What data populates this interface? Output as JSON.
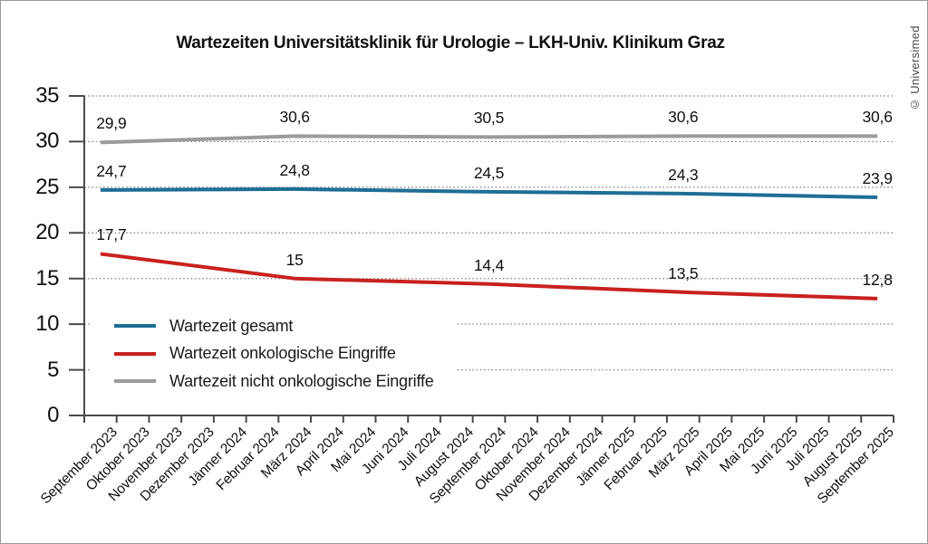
{
  "title": "Wartezeiten Universitätsklinik für Urologie – LKH-Univ. Klinikum Graz",
  "watermark": "© Universimed",
  "colors": {
    "axis": "#4a4a4a",
    "grid": "#808080",
    "series_blue": "#1f6e96",
    "series_red": "#c8211f",
    "series_gray": "#9b9b9b"
  },
  "chart_data": {
    "type": "line",
    "title": "Wartezeiten Universitätsklinik für Urologie – LKH-Univ. Klinikum Graz",
    "xlabel": "",
    "ylabel": "",
    "ylim": [
      0,
      35
    ],
    "ytick_step": 5,
    "ytick_labels": [
      "0",
      "5",
      "10",
      "15",
      "20",
      "25",
      "30",
      "35"
    ],
    "grid": "horizontal-dotted",
    "legend_position": "inside-lower-left",
    "x_categories": [
      "September 2023",
      "Oktober 2023",
      "November 2023",
      "Dezember 2023",
      "Jänner 2024",
      "Februar 2024",
      "März 2024",
      "April 2024",
      "Mai 2024",
      "Juni 2024",
      "Juli 2024",
      "August 2024",
      "September 2024",
      "Oktober 2024",
      "November 2024",
      "Dezember 2024",
      "Jänner 2025",
      "Februar 2025",
      "März 2025",
      "April 2025",
      "Mai 2025",
      "Juni 2025",
      "Juli 2025",
      "August 2025",
      "September 2025"
    ],
    "series": [
      {
        "name": "Wartezeit gesamt",
        "color": "#1f6e96",
        "points": [
          {
            "category": "September 2023",
            "value": 24.7,
            "label": "24,7"
          },
          {
            "category": "März 2024",
            "value": 24.8,
            "label": "24,8"
          },
          {
            "category": "September 2024",
            "value": 24.5,
            "label": "24,5"
          },
          {
            "category": "März 2025",
            "value": 24.3,
            "label": "24,3"
          },
          {
            "category": "September 2025",
            "value": 23.9,
            "label": "23,9"
          }
        ]
      },
      {
        "name": "Wartezeit onkologische Eingriffe",
        "color": "#c8211f",
        "points": [
          {
            "category": "September 2023",
            "value": 17.7,
            "label": "17,7"
          },
          {
            "category": "März 2024",
            "value": 15,
            "label": "15"
          },
          {
            "category": "September 2024",
            "value": 14.4,
            "label": "14,4"
          },
          {
            "category": "März 2025",
            "value": 13.5,
            "label": "13,5"
          },
          {
            "category": "September 2025",
            "value": 12.8,
            "label": "12,8"
          }
        ]
      },
      {
        "name": "Wartezeit nicht onkologische Eingriffe",
        "color": "#9b9b9b",
        "points": [
          {
            "category": "September 2023",
            "value": 29.9,
            "label": "29,9"
          },
          {
            "category": "März 2024",
            "value": 30.6,
            "label": "30,6"
          },
          {
            "category": "September 2024",
            "value": 30.5,
            "label": "30,5"
          },
          {
            "category": "März 2025",
            "value": 30.6,
            "label": "30,6"
          },
          {
            "category": "September 2025",
            "value": 30.6,
            "label": "30,6"
          }
        ]
      }
    ]
  }
}
